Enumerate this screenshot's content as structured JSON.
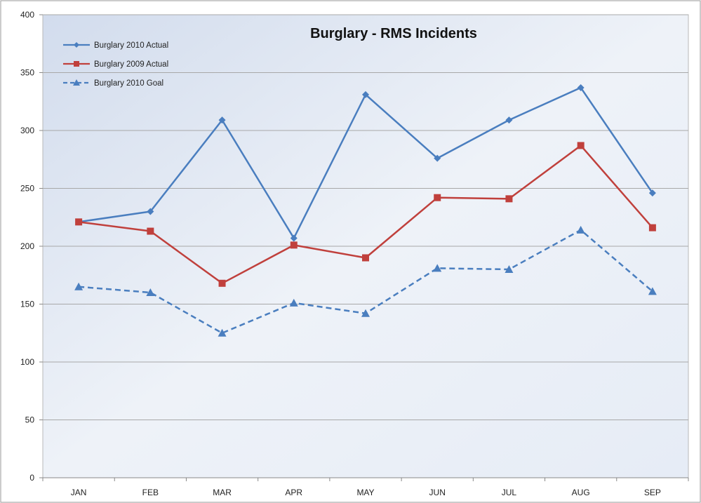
{
  "chart_data": {
    "type": "line",
    "title": "Burglary - RMS Incidents",
    "xlabel": "",
    "ylabel": "",
    "categories": [
      "JAN",
      "FEB",
      "MAR",
      "APR",
      "MAY",
      "JUN",
      "JUL",
      "AUG",
      "SEP"
    ],
    "ylim": [
      0,
      400
    ],
    "yticks": [
      0,
      50,
      100,
      150,
      200,
      250,
      300,
      350,
      400
    ],
    "grid": true,
    "legend_position": "top-left",
    "series": [
      {
        "name": "Burglary 2010 Actual",
        "values": [
          221,
          230,
          309,
          207,
          331,
          276,
          309,
          337,
          246
        ],
        "color": "#4a7ebf",
        "line_style": "solid",
        "marker": "diamond"
      },
      {
        "name": "Burglary 2009 Actual",
        "values": [
          221,
          213,
          168,
          201,
          190,
          242,
          241,
          287,
          216
        ],
        "color": "#c0403c",
        "line_style": "solid",
        "marker": "square"
      },
      {
        "name": "Burglary 2010 Goal",
        "values": [
          165,
          160,
          125,
          151,
          142,
          181,
          180,
          214,
          161
        ],
        "color": "#4a7ebf",
        "line_style": "dashed",
        "marker": "triangle"
      }
    ]
  }
}
